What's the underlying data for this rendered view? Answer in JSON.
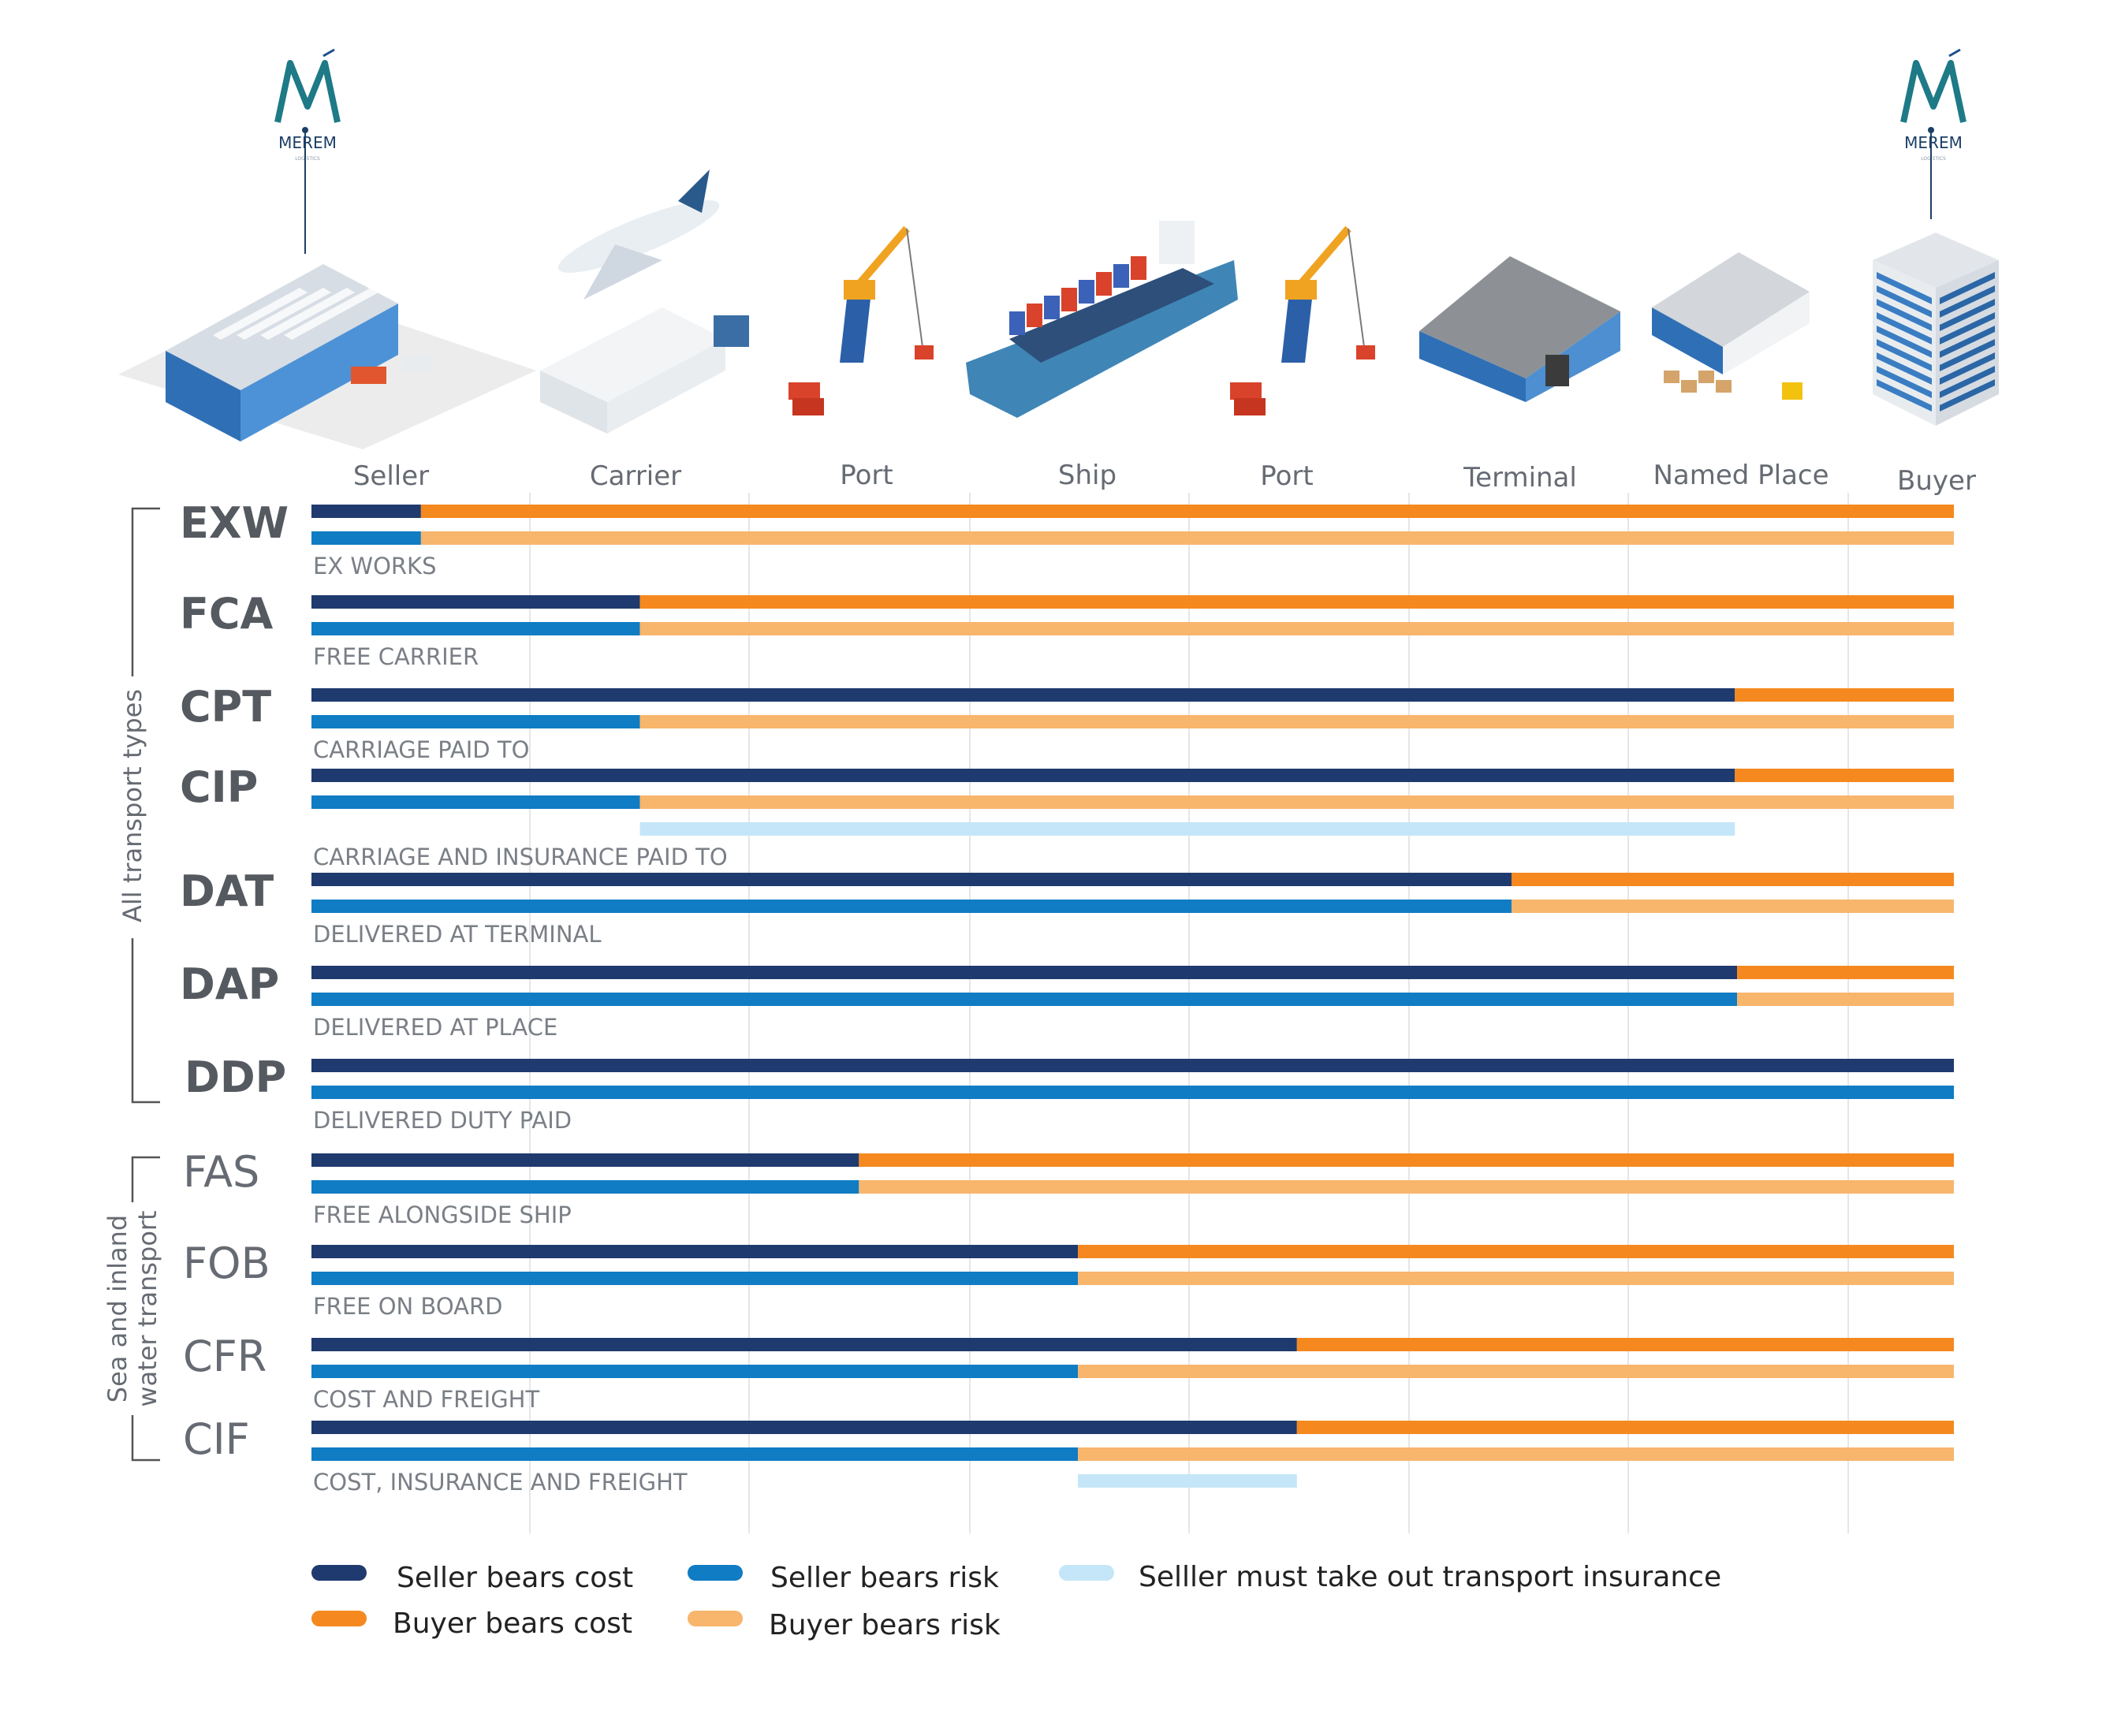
{
  "logos": [
    {
      "id": "left",
      "brand": "MEREM",
      "tagline": "LOGISTICS"
    },
    {
      "id": "right",
      "brand": "MEREM",
      "tagline": "LOGISTICS"
    }
  ],
  "stages": [
    {
      "label": "Seller",
      "icon": "warehouse-icon"
    },
    {
      "label": "Carrier",
      "icon": "airplane-truck-icon"
    },
    {
      "label": "Port",
      "icon": "port-crane-icon"
    },
    {
      "label": "Ship",
      "icon": "container-ship-icon"
    },
    {
      "label": "Port",
      "icon": "port-crane-icon"
    },
    {
      "label": "Terminal",
      "icon": "terminal-icon"
    },
    {
      "label": "Named Place",
      "icon": "named-place-icon"
    },
    {
      "label": "Buyer",
      "icon": "office-building-icon"
    }
  ],
  "groups": [
    {
      "label": "All transport types",
      "lines": [
        "All transport types"
      ]
    },
    {
      "label": "Sea and inland water transport",
      "lines": [
        "Sea and inland",
        "water transport"
      ]
    }
  ],
  "legend": [
    {
      "key": "seller_cost",
      "label": "Seller bears cost",
      "color": "#1f3a6e"
    },
    {
      "key": "seller_risk",
      "label": "Seller bears risk",
      "color": "#0f7cc4"
    },
    {
      "key": "insurance",
      "label": "Selller must take out transport insurance",
      "color": "#c5e6f8"
    },
    {
      "key": "buyer_cost",
      "label": "Buyer bears cost",
      "color": "#f5891f"
    },
    {
      "key": "buyer_risk",
      "label": "Buyer bears risk",
      "color": "#f8b56c"
    }
  ],
  "chart_data": {
    "type": "bar",
    "orientation": "horizontal-stacked",
    "x_axis": [
      "Seller",
      "Carrier",
      "Port",
      "Ship",
      "Port",
      "Terminal",
      "Named Place",
      "Buyer"
    ],
    "xlim": [
      0,
      7.5
    ],
    "grid": true,
    "legend_position": "bottom",
    "series": [
      {
        "name": "Seller bears cost"
      },
      {
        "name": "Seller bears risk"
      },
      {
        "name": "Selller must take out transport insurance"
      },
      {
        "name": "Buyer bears cost"
      },
      {
        "name": "Buyer bears risk"
      }
    ],
    "rows": [
      {
        "code": "EXW",
        "name": "EX WORKS",
        "group": 0,
        "bold": true,
        "seller_cost_to": 0.5,
        "seller_risk_to": 0.5
      },
      {
        "code": "FCA",
        "name": "FREE CARRIER",
        "group": 0,
        "bold": true,
        "seller_cost_to": 1.5,
        "seller_risk_to": 1.5
      },
      {
        "code": "CPT",
        "name": "CARRIAGE PAID TO",
        "group": 0,
        "bold": true,
        "seller_cost_to": 6.5,
        "seller_risk_to": 1.5
      },
      {
        "code": "CIP",
        "name": "CARRIAGE AND INSURANCE PAID TO",
        "group": 0,
        "bold": true,
        "seller_cost_to": 6.5,
        "seller_risk_to": 1.5,
        "insurance": [
          1.5,
          6.5
        ]
      },
      {
        "code": "DAT",
        "name": "DELIVERED AT TERMINAL",
        "group": 0,
        "bold": true,
        "seller_cost_to": 5.48,
        "seller_risk_to": 5.48
      },
      {
        "code": "DAP",
        "name": "DELIVERED AT PLACE",
        "group": 0,
        "bold": true,
        "seller_cost_to": 6.51,
        "seller_risk_to": 6.51
      },
      {
        "code": "DDP",
        "name": "DELIVERED DUTY PAID",
        "group": 0,
        "bold": true,
        "seller_cost_to": 7.5,
        "seller_risk_to": 7.5
      },
      {
        "code": "FAS",
        "name": "FREE ALONGSIDE SHIP",
        "group": 1,
        "bold": false,
        "seller_cost_to": 2.5,
        "seller_risk_to": 2.5
      },
      {
        "code": "FOB",
        "name": "FREE ON BOARD",
        "group": 1,
        "bold": false,
        "seller_cost_to": 3.5,
        "seller_risk_to": 3.5
      },
      {
        "code": "CFR",
        "name": "COST AND FREIGHT",
        "group": 1,
        "bold": false,
        "seller_cost_to": 4.5,
        "seller_risk_to": 3.5
      },
      {
        "code": "CIF",
        "name": "COST, INSURANCE AND FREIGHT",
        "group": 1,
        "bold": false,
        "seller_cost_to": 4.5,
        "seller_risk_to": 3.5,
        "insurance": [
          3.5,
          4.5
        ]
      }
    ]
  }
}
